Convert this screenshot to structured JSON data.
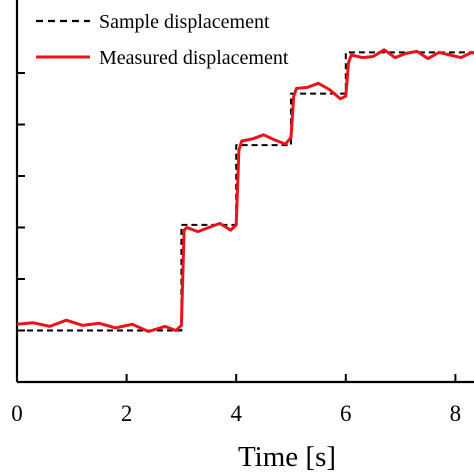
{
  "chart_data": {
    "type": "line",
    "title": "",
    "xlabel": "Time [s]",
    "ylabel": "",
    "xlim": [
      0,
      8.6
    ],
    "ylim": [
      0,
      6.4
    ],
    "x_ticks": [
      "0",
      "2",
      "4",
      "6",
      "8"
    ],
    "y_tick_count": 6,
    "grid": false,
    "legend_position": "top-left",
    "series": [
      {
        "name": "Sample displacement",
        "style": "dashed",
        "color": "#000000",
        "x": [
          0,
          3.0,
          3.0,
          4.0,
          4.0,
          5.0,
          5.0,
          6.0,
          6.0,
          8.6
        ],
        "y": [
          1.0,
          1.0,
          3.05,
          3.05,
          4.6,
          4.6,
          5.6,
          5.6,
          6.4,
          6.4
        ]
      },
      {
        "name": "Measured displacement",
        "style": "solid",
        "color": "#e8141a",
        "x": [
          0,
          0.3,
          0.6,
          0.9,
          1.2,
          1.5,
          1.8,
          2.1,
          2.4,
          2.7,
          2.9,
          3.0,
          3.05,
          3.1,
          3.3,
          3.5,
          3.7,
          3.9,
          4.0,
          4.05,
          4.1,
          4.3,
          4.5,
          4.7,
          4.9,
          5.0,
          5.05,
          5.1,
          5.3,
          5.5,
          5.7,
          5.9,
          6.0,
          6.05,
          6.1,
          6.3,
          6.5,
          6.7,
          6.9,
          7.1,
          7.3,
          7.5,
          7.7,
          7.9,
          8.1,
          8.3,
          8.6
        ],
        "y": [
          1.12,
          1.15,
          1.08,
          1.2,
          1.1,
          1.14,
          1.05,
          1.12,
          0.98,
          1.08,
          1.0,
          1.1,
          2.95,
          3.0,
          2.92,
          3.0,
          3.08,
          2.95,
          3.05,
          4.5,
          4.68,
          4.72,
          4.8,
          4.7,
          4.62,
          4.75,
          5.55,
          5.7,
          5.72,
          5.8,
          5.68,
          5.5,
          5.55,
          6.2,
          6.35,
          6.3,
          6.32,
          6.45,
          6.3,
          6.38,
          6.42,
          6.28,
          6.4,
          6.35,
          6.3,
          6.4,
          6.32
        ]
      }
    ]
  }
}
